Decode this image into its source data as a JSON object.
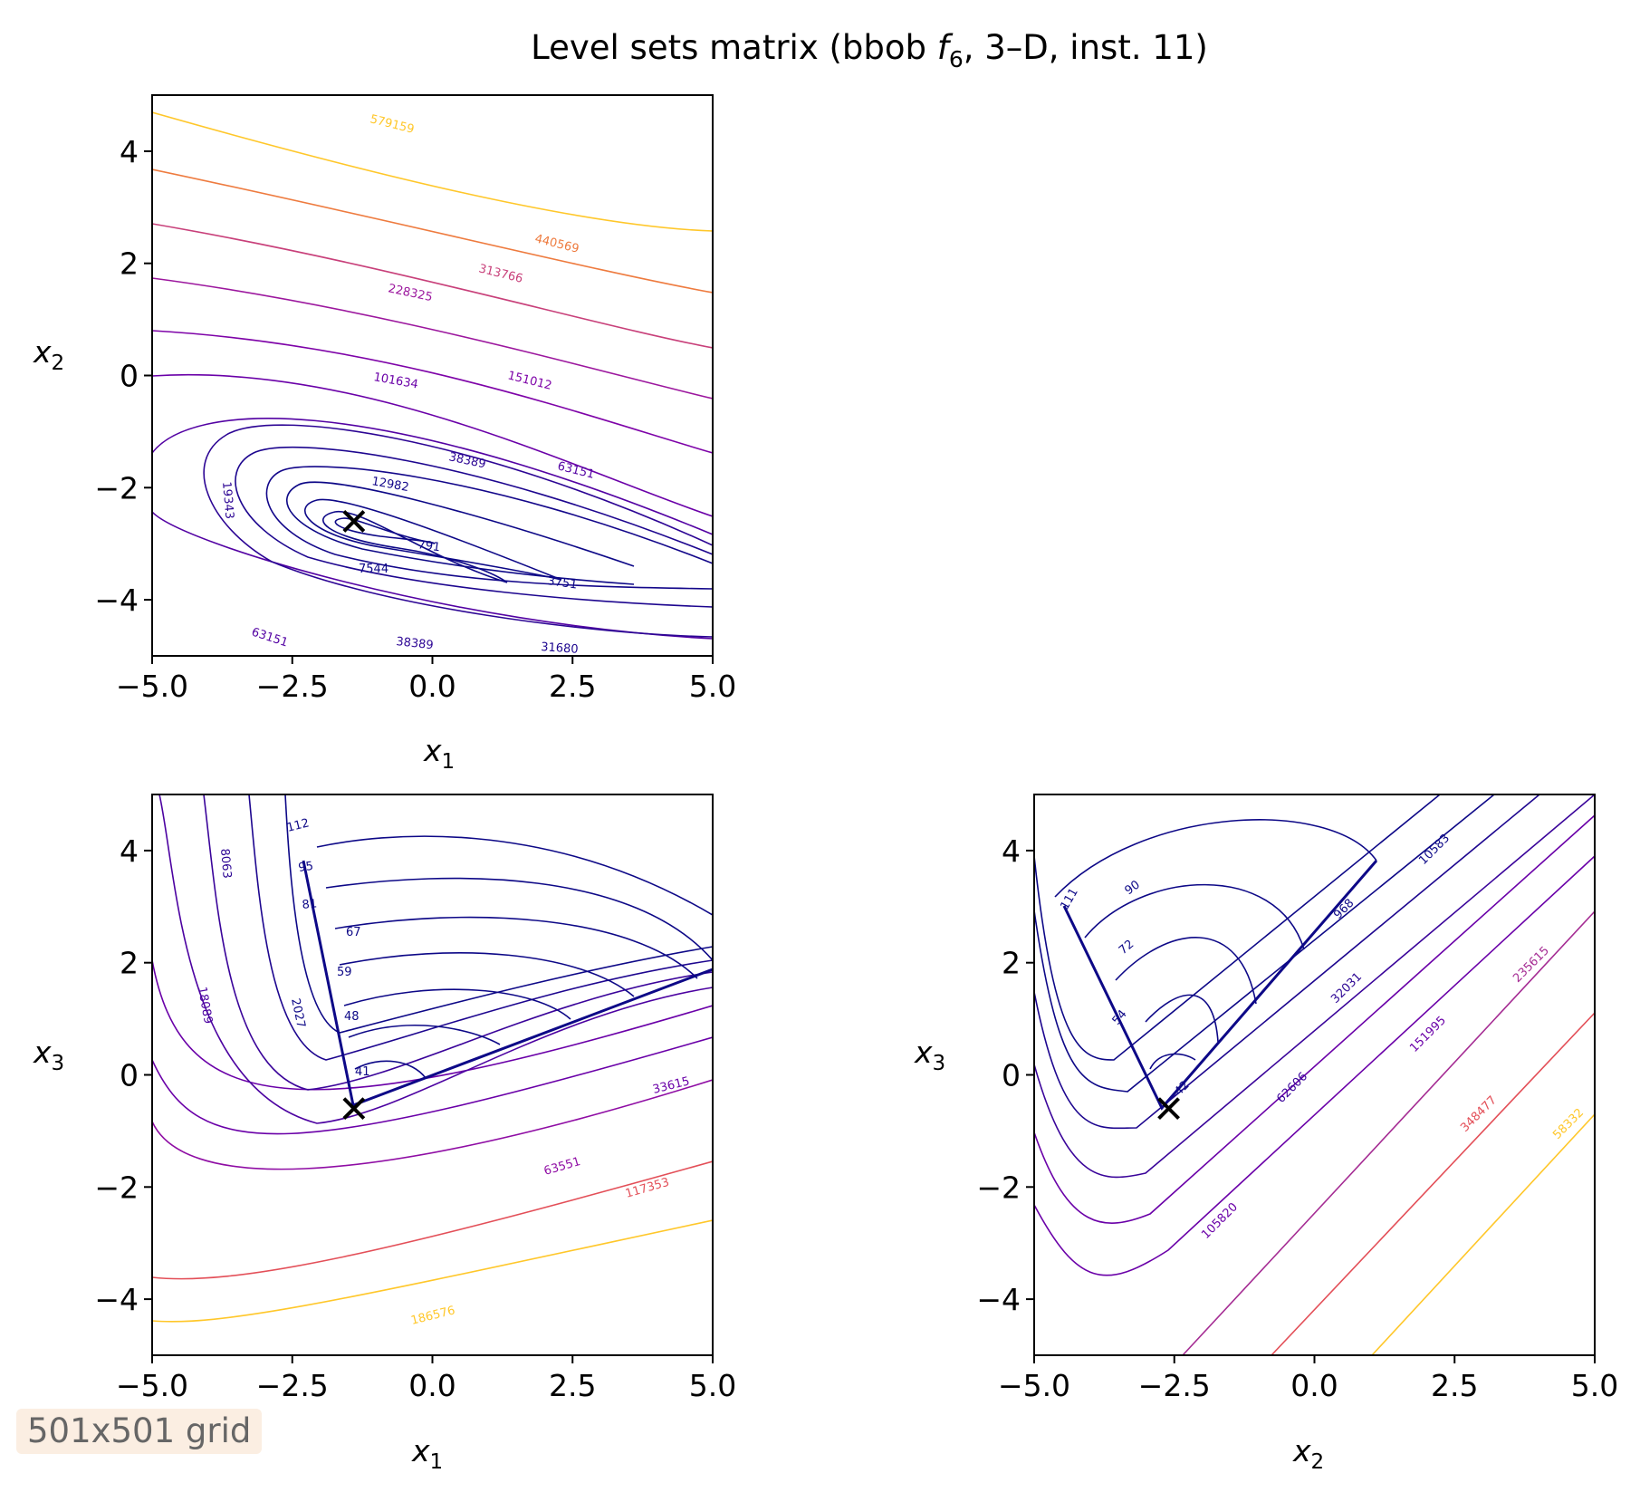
{
  "figure": {
    "title_prefix": "Level sets matrix (bbob ",
    "title_fn": "f",
    "title_fn_sub": "6",
    "title_suffix": ", 3–D, inst. 11)",
    "footer_note": "501x501 grid"
  },
  "chart_data": [
    {
      "type": "contour",
      "panel": "x1-x2",
      "xlabel_base": "x",
      "xlabel_sub": "1",
      "ylabel_base": "x",
      "ylabel_sub": "2",
      "xlim": [
        -5,
        5
      ],
      "ylim": [
        -5,
        5
      ],
      "xticks": [
        "−5.0",
        "−2.5",
        "0.0",
        "2.5",
        "5.0"
      ],
      "yticks": [
        "−4",
        "−2",
        "0",
        "2",
        "4"
      ],
      "optimum": [
        -1.4,
        -2.6
      ],
      "level_labels": [
        "579159",
        "440569",
        "313766",
        "228325",
        "151012",
        "101634",
        "63151",
        "38389",
        "19343",
        "12982",
        "791",
        "7544",
        "3751",
        "63151",
        "38389",
        "31680"
      ]
    },
    {
      "type": "contour",
      "panel": "x1-x3",
      "xlabel_base": "x",
      "xlabel_sub": "1",
      "ylabel_base": "x",
      "ylabel_sub": "3",
      "xlim": [
        -5,
        5
      ],
      "ylim": [
        -5,
        5
      ],
      "xticks": [
        "−5.0",
        "−2.5",
        "0.0",
        "2.5",
        "5.0"
      ],
      "yticks": [
        "−4",
        "−2",
        "0",
        "2",
        "4"
      ],
      "optimum": [
        -1.4,
        -0.6
      ],
      "level_labels": [
        "112",
        "95",
        "81",
        "67",
        "59",
        "48",
        "41",
        "8063",
        "18089",
        "2027",
        "33615",
        "63551",
        "117353",
        "186576"
      ]
    },
    {
      "type": "contour",
      "panel": "x2-x3",
      "xlabel_base": "x",
      "xlabel_sub": "2",
      "ylabel_base": "x",
      "ylabel_sub": "3",
      "xlim": [
        -5,
        5
      ],
      "ylim": [
        -5,
        5
      ],
      "xticks": [
        "−5.0",
        "−2.5",
        "0.0",
        "2.5",
        "5.0"
      ],
      "yticks": [
        "−4",
        "−2",
        "0",
        "2",
        "4"
      ],
      "optimum": [
        -2.6,
        -0.6
      ],
      "level_labels": [
        "111",
        "90",
        "72",
        "54",
        "42",
        "968",
        "10583",
        "32031",
        "62606",
        "151995",
        "235615",
        "105820",
        "348477",
        "58332"
      ]
    }
  ]
}
